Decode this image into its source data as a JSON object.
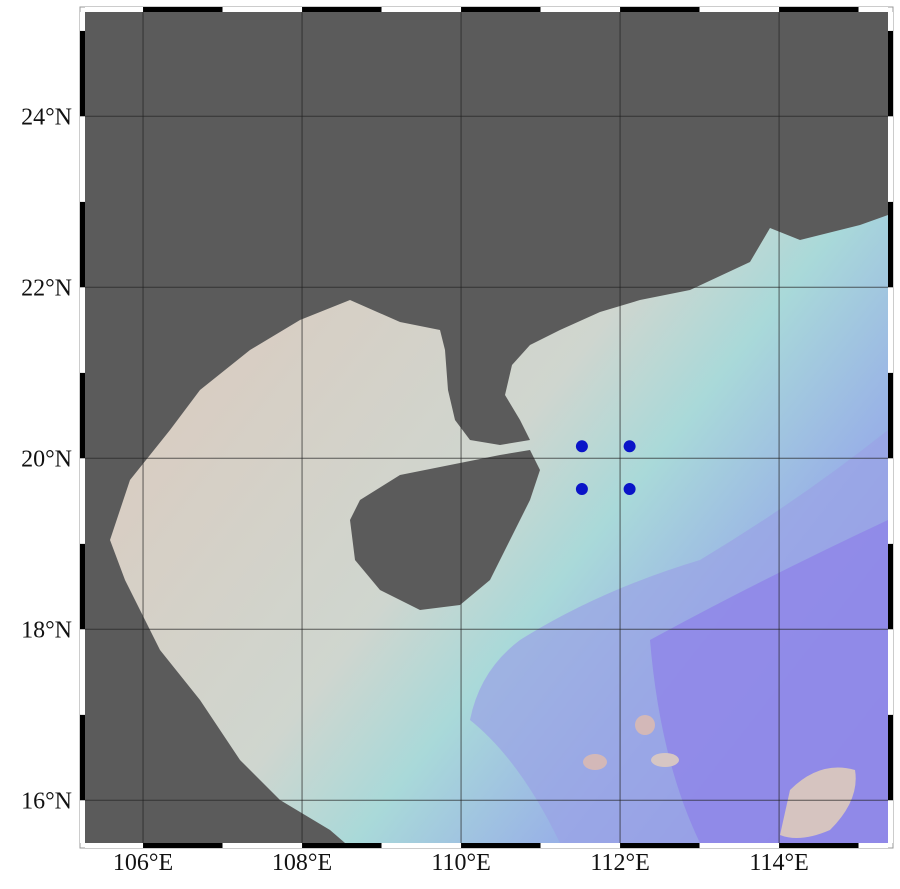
{
  "map": {
    "extent": {
      "lon": [
        105.27,
        115.37
      ],
      "lat": [
        15.5,
        25.22
      ]
    },
    "lon_ticks": [
      {
        "value": 106,
        "label": "106°E"
      },
      {
        "value": 108,
        "label": "108°E"
      },
      {
        "value": 110,
        "label": "110°E"
      },
      {
        "value": 112,
        "label": "112°E"
      },
      {
        "value": 114,
        "label": "114°E"
      }
    ],
    "lat_ticks": [
      {
        "value": 16,
        "label": "16°N"
      },
      {
        "value": 18,
        "label": "18°N"
      },
      {
        "value": 20,
        "label": "20°N"
      },
      {
        "value": 22,
        "label": "22°N"
      },
      {
        "value": 24,
        "label": "24°N"
      }
    ],
    "stations": [
      {
        "lon": 111.52,
        "lat": 20.14
      },
      {
        "lon": 112.12,
        "lat": 20.14
      },
      {
        "lon": 111.52,
        "lat": 19.64
      },
      {
        "lon": 112.12,
        "lat": 19.64
      }
    ],
    "colors": {
      "land": "#5b5b5b",
      "shallow": "#d9cdc2",
      "mid": "#a9d9d9",
      "deep": "#8f86e6",
      "station": "#0a14c8",
      "grid": "#222222"
    }
  }
}
